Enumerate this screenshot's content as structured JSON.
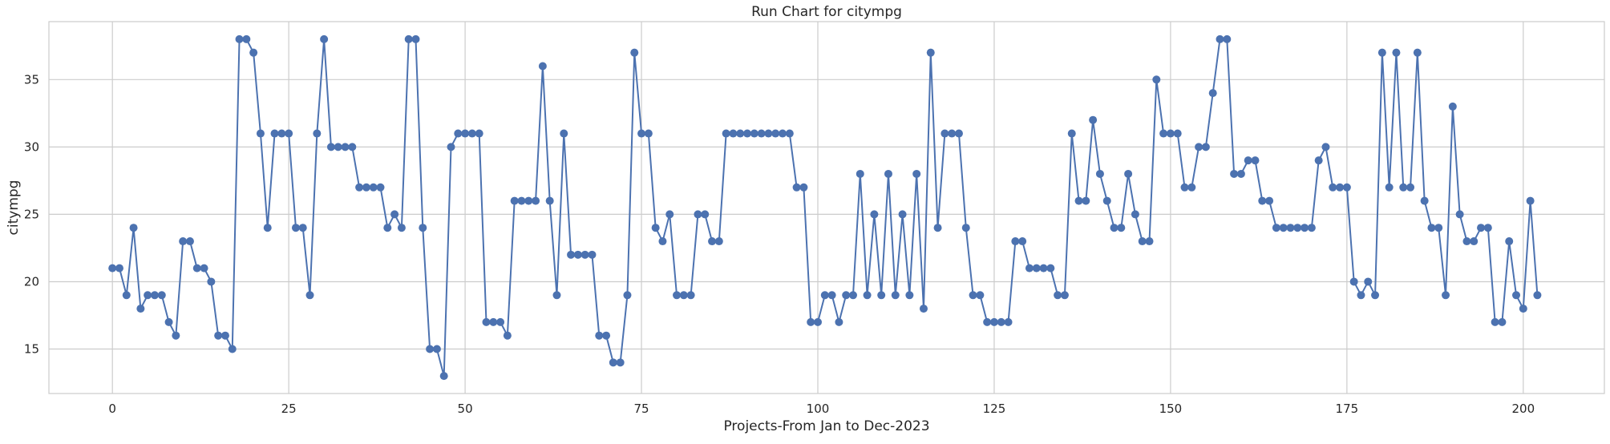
{
  "chart_data": {
    "type": "line",
    "title": "Run Chart for citympg",
    "xlabel": "Projects-From Jan to Dec-2023",
    "ylabel": "citympg",
    "xlim": [
      -9,
      211.5
    ],
    "ylim": [
      11.7,
      39.3
    ],
    "xticks": [
      0,
      25,
      50,
      75,
      100,
      125,
      150,
      175,
      200
    ],
    "yticks": [
      15,
      20,
      25,
      30,
      35
    ],
    "grid": true,
    "legend": "none",
    "series": [
      {
        "color": "#4c72b0",
        "marker": "circle",
        "values": [
          21,
          21,
          19,
          24,
          18,
          19,
          19,
          19,
          17,
          16,
          23,
          23,
          21,
          21,
          20,
          16,
          16,
          15,
          38,
          38,
          37,
          31,
          24,
          31,
          31,
          31,
          24,
          24,
          19,
          31,
          38,
          30,
          30,
          30,
          30,
          27,
          27,
          27,
          27,
          24,
          25,
          24,
          38,
          38,
          24,
          15,
          15,
          13,
          30,
          31,
          31,
          31,
          31,
          17,
          17,
          17,
          16,
          26,
          26,
          26,
          26,
          36,
          26,
          19,
          31,
          22,
          22,
          22,
          22,
          16,
          16,
          14,
          14,
          19,
          37,
          31,
          31,
          24,
          23,
          25,
          19,
          19,
          19,
          25,
          25,
          23,
          23,
          31,
          31,
          31,
          31,
          31,
          31,
          31,
          31,
          31,
          31,
          27,
          27,
          17,
          17,
          19,
          19,
          17,
          19,
          19,
          28,
          19,
          25,
          19,
          28,
          19,
          25,
          19,
          28,
          18,
          37,
          24,
          31,
          31,
          31,
          24,
          19,
          19,
          17,
          17,
          17,
          17,
          23,
          23,
          21,
          21,
          21,
          21,
          19,
          19,
          31,
          26,
          26,
          32,
          28,
          26,
          24,
          24,
          28,
          25,
          23,
          23,
          35,
          31,
          31,
          31,
          27,
          27,
          30,
          30,
          34,
          38,
          38,
          28,
          28,
          29,
          29,
          26,
          26,
          24,
          24,
          24,
          24,
          24,
          24,
          29,
          30,
          27,
          27,
          27,
          20,
          19,
          20,
          19,
          37,
          27,
          37,
          27,
          27,
          37,
          26,
          24,
          24,
          19,
          33,
          25,
          23,
          23,
          24,
          24,
          17,
          17,
          23,
          19,
          18,
          26,
          19
        ]
      }
    ]
  }
}
